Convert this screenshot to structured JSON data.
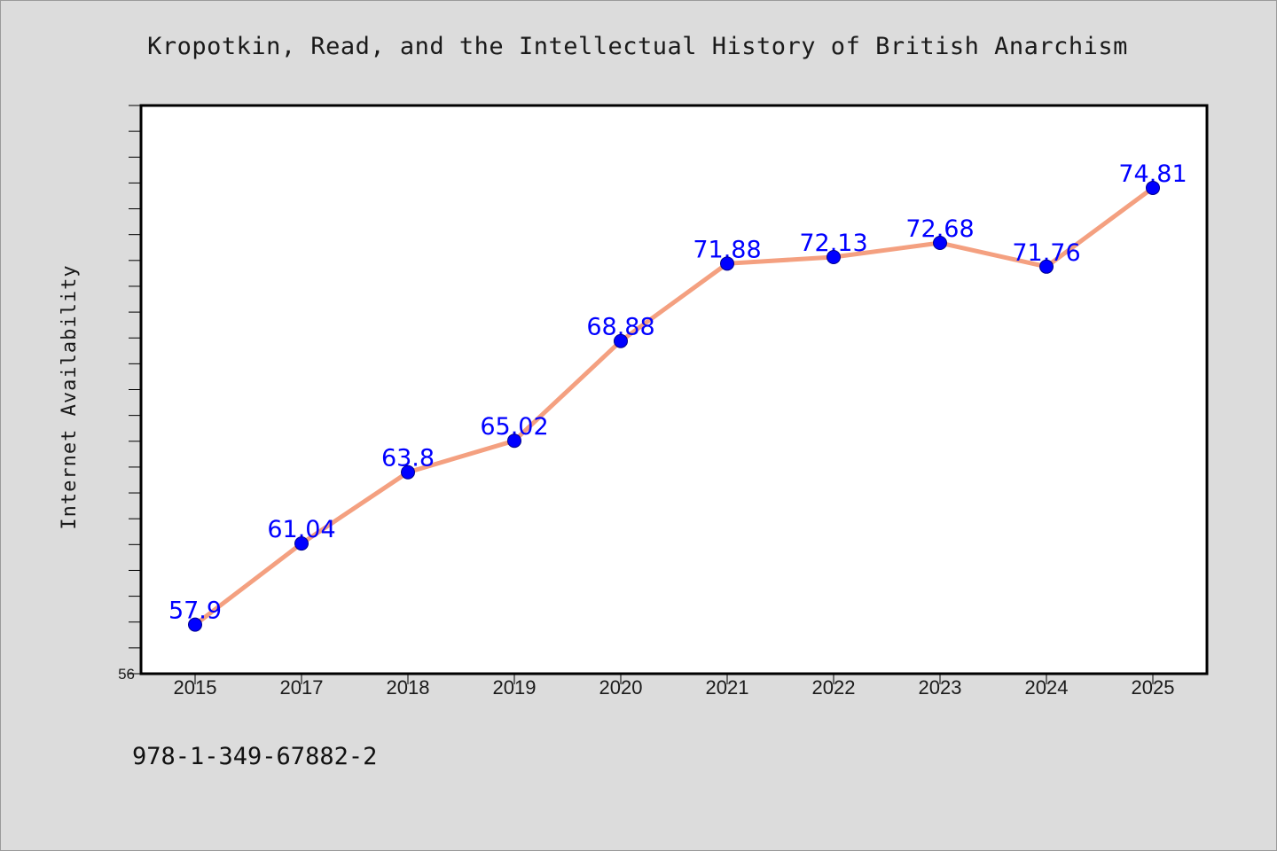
{
  "chart_data": {
    "type": "line",
    "title": "Kropotkin, Read, and the Intellectual History of British Anarchism",
    "xlabel": "",
    "ylabel": "Internet Availability",
    "categories": [
      "2015",
      "2017",
      "2018",
      "2019",
      "2020",
      "2021",
      "2022",
      "2023",
      "2024",
      "2025"
    ],
    "series": [
      {
        "values": [
          57.9,
          61.04,
          63.8,
          65.02,
          68.88,
          71.88,
          72.13,
          72.68,
          71.76,
          74.81
        ],
        "labels": [
          "57.9",
          "61.04",
          "63.8",
          "65.02",
          "68.88",
          "71.88",
          "72.13",
          "72.68",
          "71.76",
          "74.81"
        ]
      }
    ],
    "ylim": [
      56,
      78
    ],
    "ytick_label": "56",
    "grid": false,
    "legend": "none",
    "colors": {
      "line": "#f4a080",
      "marker": "#0000ff",
      "data_label": "#0000ff",
      "plot_background": "#ffffff",
      "page_background": "#dcdcdc"
    }
  },
  "footer": {
    "isbn": "978-1-349-67882-2"
  }
}
